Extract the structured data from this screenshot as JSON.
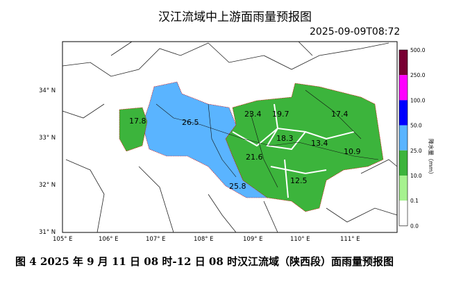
{
  "title": "汉江流域中上游面雨量预报图",
  "timestamp": "2025-09-09T08:72",
  "caption": "图 4  2025 年 9 月 11 日 08 时-12 日 08 时汉江流域（陕西段）面雨量预报图",
  "map": {
    "lon_labels": [
      "105° E",
      "106° E",
      "107° E",
      "108° E",
      "109° E",
      "110° E",
      "111° E"
    ],
    "lat_labels": [
      "34° N",
      "33° N",
      "32° N",
      "31° N"
    ],
    "region_values": [
      "17.8",
      "26.5",
      "23.4",
      "19.7",
      "17.4",
      "18.3",
      "13.4",
      "10.9",
      "21.6",
      "12.5",
      "25.8"
    ]
  },
  "legend": {
    "title": "降水量（mm）",
    "ticks": [
      "500.0",
      "250.0",
      "100.0",
      "50.0",
      "25.0",
      "10.0",
      "0.1",
      "0.0"
    ],
    "colors": [
      "#780032",
      "#ff00ff",
      "#0000ff",
      "#5ab4ff",
      "#3cb43c",
      "#a6f28f",
      "#ffffff"
    ]
  }
}
